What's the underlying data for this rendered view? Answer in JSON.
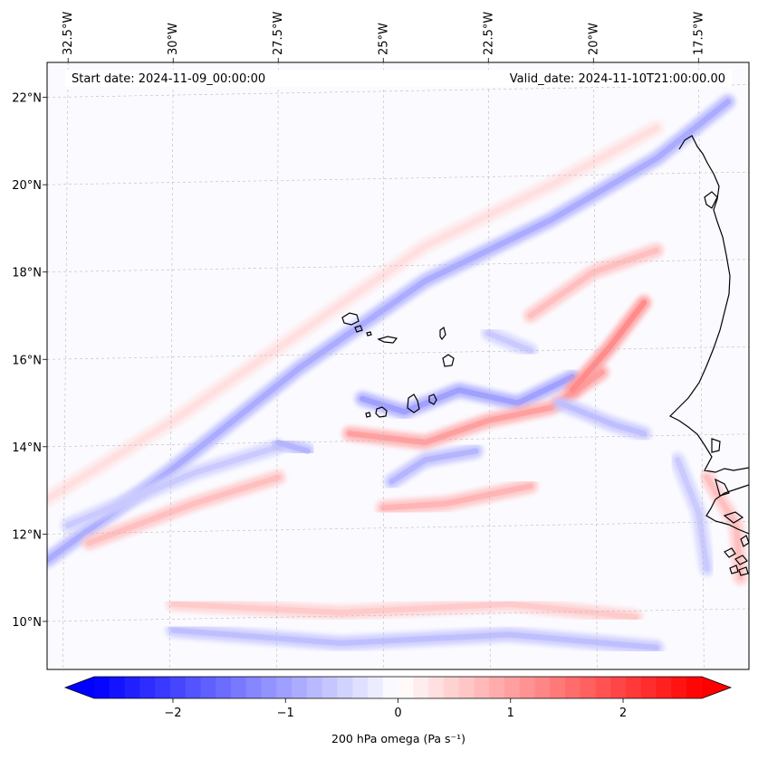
{
  "figure": {
    "start_date_label": "Start date: 2024-11-09_00:00:00",
    "valid_date_label": "Valid_date: 2024-11-10T21:00:00.00"
  },
  "map": {
    "lon_labels": [
      "32.5°W",
      "30°W",
      "27.5°W",
      "25°W",
      "22.5°W",
      "20°W",
      "17.5°W"
    ],
    "lon_values": [
      -32.5,
      -30,
      -27.5,
      -25,
      -22.5,
      -20,
      -17.5
    ],
    "lat_labels": [
      "22°N",
      "20°N",
      "18°N",
      "16°N",
      "14°N",
      "12°N",
      "10°N"
    ],
    "lat_values": [
      22,
      20,
      18,
      16,
      14,
      12,
      10
    ],
    "extent": {
      "lon_min": -33.0,
      "lon_max": -16.3,
      "lat_min": 8.9,
      "lat_max": 22.8
    },
    "gridlines": true,
    "coastline_color": "#000000",
    "features": {
      "islands": [
        "Cabo Verde islands"
      ],
      "coast": [
        "West African coast (Mauritania, Senegal, Gambia, Guinea-Bissau)"
      ]
    }
  },
  "colorbar": {
    "label": "200 hPa omega (Pa s⁻¹)",
    "tick_labels": [
      "−2",
      "−1",
      "0",
      "1",
      "2"
    ],
    "tick_values": [
      -2,
      -1,
      0,
      1,
      2
    ],
    "vmin": -2.7,
    "vmax": 2.7,
    "extend": "both",
    "colormap": "bwr",
    "colors": {
      "negative": "#0000ff",
      "zero": "#ffffff",
      "positive": "#ff0000"
    }
  },
  "chart_data": {
    "type": "heatmap",
    "variable": "200 hPa omega",
    "units": "Pa s⁻¹",
    "color_range": [
      -2.7,
      2.7
    ],
    "bands": [
      {
        "sign": "negative",
        "peak": -0.8,
        "path": [
          [
            -33.0,
            11.4
          ],
          [
            -30.0,
            13.5
          ],
          [
            -27.0,
            15.8
          ],
          [
            -24.0,
            17.8
          ],
          [
            -21.0,
            19.2
          ],
          [
            -18.5,
            20.6
          ],
          [
            -16.8,
            21.9
          ]
        ]
      },
      {
        "sign": "positive",
        "peak": 0.3,
        "path": [
          [
            -33.0,
            12.8
          ],
          [
            -30.0,
            14.6
          ],
          [
            -27.0,
            16.6
          ],
          [
            -24.0,
            18.6
          ],
          [
            -21.0,
            20.0
          ],
          [
            -18.5,
            21.3
          ]
        ]
      },
      {
        "sign": "negative",
        "peak": -0.5,
        "path": [
          [
            -32.5,
            12.2
          ],
          [
            -29.5,
            13.4
          ],
          [
            -27.5,
            14.0
          ]
        ]
      },
      {
        "sign": "positive",
        "peak": 0.6,
        "path": [
          [
            -32.0,
            11.8
          ],
          [
            -29.5,
            12.7
          ],
          [
            -27.5,
            13.3
          ]
        ]
      },
      {
        "sign": "negative",
        "peak": -0.6,
        "path": [
          [
            -30.0,
            9.8
          ],
          [
            -26.0,
            9.5
          ],
          [
            -22.0,
            9.7
          ],
          [
            -18.5,
            9.4
          ]
        ]
      },
      {
        "sign": "positive",
        "peak": 0.5,
        "path": [
          [
            -30.0,
            10.4
          ],
          [
            -26.0,
            10.2
          ],
          [
            -22.0,
            10.4
          ],
          [
            -19.0,
            10.1
          ]
        ]
      },
      {
        "sign": "negative",
        "peak": -0.9,
        "path": [
          [
            -25.5,
            15.1
          ],
          [
            -24.5,
            14.8
          ],
          [
            -23.2,
            15.3
          ],
          [
            -21.8,
            15.0
          ],
          [
            -20.5,
            15.6
          ]
        ]
      },
      {
        "sign": "positive",
        "peak": 0.9,
        "path": [
          [
            -25.8,
            14.3
          ],
          [
            -24.0,
            14.1
          ],
          [
            -22.5,
            14.6
          ],
          [
            -21.0,
            14.9
          ],
          [
            -19.8,
            15.7
          ]
        ]
      },
      {
        "sign": "negative",
        "peak": -0.7,
        "path": [
          [
            -27.5,
            14.1
          ],
          [
            -26.8,
            13.9
          ]
        ]
      },
      {
        "sign": "negative",
        "peak": -0.7,
        "path": [
          [
            -24.8,
            13.2
          ],
          [
            -24.0,
            13.7
          ],
          [
            -22.8,
            13.9
          ]
        ]
      },
      {
        "sign": "positive",
        "peak": 0.7,
        "path": [
          [
            -25.0,
            12.6
          ],
          [
            -23.5,
            12.7
          ],
          [
            -21.5,
            13.1
          ]
        ]
      },
      {
        "sign": "positive",
        "peak": 1.1,
        "path": [
          [
            -20.5,
            15.3
          ],
          [
            -19.6,
            16.3
          ],
          [
            -18.8,
            17.3
          ]
        ]
      },
      {
        "sign": "positive",
        "peak": 0.6,
        "path": [
          [
            -21.5,
            17.0
          ],
          [
            -20.0,
            18.0
          ],
          [
            -18.5,
            18.5
          ]
        ]
      },
      {
        "sign": "negative",
        "peak": -0.5,
        "path": [
          [
            -22.5,
            16.6
          ],
          [
            -21.5,
            16.2
          ]
        ]
      },
      {
        "sign": "negative",
        "peak": -0.6,
        "path": [
          [
            -20.8,
            15.0
          ],
          [
            -19.5,
            14.5
          ],
          [
            -18.8,
            14.3
          ]
        ]
      },
      {
        "sign": "positive",
        "peak": 0.6,
        "path": [
          [
            -17.3,
            13.3
          ],
          [
            -16.6,
            12.2
          ],
          [
            -16.5,
            11.0
          ]
        ]
      },
      {
        "sign": "negative",
        "peak": -0.5,
        "path": [
          [
            -18.0,
            13.7
          ],
          [
            -17.5,
            12.5
          ],
          [
            -17.3,
            11.2
          ]
        ]
      }
    ]
  }
}
